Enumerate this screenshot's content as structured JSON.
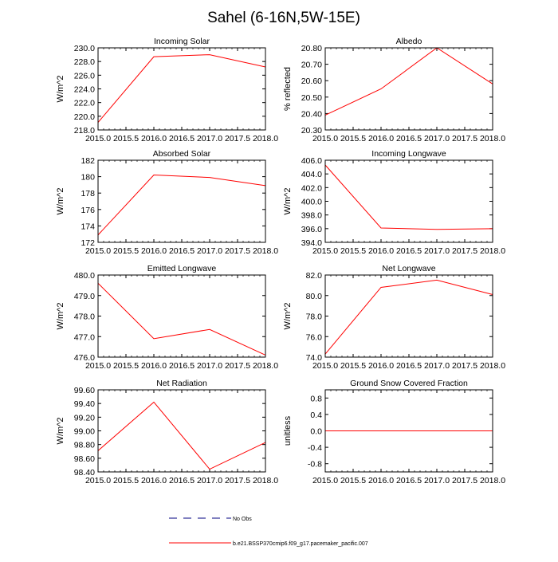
{
  "title": "Sahel (6-16N,5W-15E)",
  "colors": {
    "series": "#ff0000",
    "obs": "#000080",
    "axis": "#000000"
  },
  "legend": {
    "obs_label": "No Obs",
    "model_label": "b.e21.BSSP370cmip6.f09_g17.pacemaker_pacific.007"
  },
  "chart_data": [
    {
      "type": "line",
      "title": "Incoming Solar",
      "xlabel": "",
      "ylabel": "W/m^2",
      "x": [
        2015,
        2016,
        2017,
        2018
      ],
      "xlim": [
        2015,
        2018
      ],
      "xticks": [
        "2015.0",
        "2015.5",
        "2016.0",
        "2016.5",
        "2017.0",
        "2017.5",
        "2018.0"
      ],
      "ylim": [
        218,
        230
      ],
      "yticks": [
        "218.0",
        "220.0",
        "222.0",
        "224.0",
        "226.0",
        "228.0",
        "230.0"
      ],
      "series": [
        {
          "name": "b.e21.BSSP370cmip6.f09_g17.pacemaker_pacific.007",
          "values": [
            219.1,
            228.7,
            229.0,
            227.2
          ]
        }
      ]
    },
    {
      "type": "line",
      "title": "Albedo",
      "xlabel": "",
      "ylabel": "% reflected",
      "x": [
        2015,
        2016,
        2017,
        2018
      ],
      "xlim": [
        2015,
        2018
      ],
      "xticks": [
        "2015.0",
        "2015.5",
        "2016.0",
        "2016.5",
        "2017.0",
        "2017.5",
        "2018.0"
      ],
      "ylim": [
        20.3,
        20.8
      ],
      "yticks": [
        "20.30",
        "20.40",
        "20.50",
        "20.60",
        "20.70",
        "20.80"
      ],
      "series": [
        {
          "name": "b.e21.BSSP370cmip6.f09_g17.pacemaker_pacific.007",
          "values": [
            20.39,
            20.55,
            20.8,
            20.58
          ]
        }
      ]
    },
    {
      "type": "line",
      "title": "Absorbed Solar",
      "xlabel": "",
      "ylabel": "W/m^2",
      "x": [
        2015,
        2016,
        2017,
        2018
      ],
      "xlim": [
        2015,
        2018
      ],
      "xticks": [
        "2015.0",
        "2015.5",
        "2016.0",
        "2016.5",
        "2017.0",
        "2017.5",
        "2018.0"
      ],
      "ylim": [
        172,
        182
      ],
      "yticks": [
        "172",
        "174",
        "176",
        "178",
        "180",
        "182"
      ],
      "series": [
        {
          "name": "b.e21.BSSP370cmip6.f09_g17.pacemaker_pacific.007",
          "values": [
            172.9,
            180.2,
            179.9,
            178.9
          ]
        }
      ]
    },
    {
      "type": "line",
      "title": "Incoming Longwave",
      "xlabel": "",
      "ylabel": "W/m^2",
      "x": [
        2015,
        2016,
        2017,
        2018
      ],
      "xlim": [
        2015,
        2018
      ],
      "xticks": [
        "2015.0",
        "2015.5",
        "2016.0",
        "2016.5",
        "2017.0",
        "2017.5",
        "2018.0"
      ],
      "ylim": [
        394,
        406
      ],
      "yticks": [
        "394.0",
        "396.0",
        "398.0",
        "400.0",
        "402.0",
        "404.0",
        "406.0"
      ],
      "series": [
        {
          "name": "b.e21.BSSP370cmip6.f09_g17.pacemaker_pacific.007",
          "values": [
            405.3,
            396.1,
            395.9,
            396.0
          ]
        }
      ]
    },
    {
      "type": "line",
      "title": "Emitted Longwave",
      "xlabel": "",
      "ylabel": "W/m^2",
      "x": [
        2015,
        2016,
        2017,
        2018
      ],
      "xlim": [
        2015,
        2018
      ],
      "xticks": [
        "2015.0",
        "2015.5",
        "2016.0",
        "2016.5",
        "2017.0",
        "2017.5",
        "2018.0"
      ],
      "ylim": [
        476,
        480
      ],
      "yticks": [
        "476.0",
        "477.0",
        "478.0",
        "479.0",
        "480.0"
      ],
      "series": [
        {
          "name": "b.e21.BSSP370cmip6.f09_g17.pacemaker_pacific.007",
          "values": [
            479.6,
            476.9,
            477.35,
            476.1
          ]
        }
      ]
    },
    {
      "type": "line",
      "title": "Net Longwave",
      "xlabel": "",
      "ylabel": "W/m^2",
      "x": [
        2015,
        2016,
        2017,
        2018
      ],
      "xlim": [
        2015,
        2018
      ],
      "xticks": [
        "2015.0",
        "2015.5",
        "2016.0",
        "2016.5",
        "2017.0",
        "2017.5",
        "2018.0"
      ],
      "ylim": [
        74,
        82
      ],
      "yticks": [
        "74.0",
        "76.0",
        "78.0",
        "80.0",
        "82.0"
      ],
      "series": [
        {
          "name": "b.e21.BSSP370cmip6.f09_g17.pacemaker_pacific.007",
          "values": [
            74.3,
            80.8,
            81.5,
            80.1
          ]
        }
      ]
    },
    {
      "type": "line",
      "title": "Net Radiation",
      "xlabel": "",
      "ylabel": "W/m^2",
      "x": [
        2015,
        2016,
        2017,
        2018
      ],
      "xlim": [
        2015,
        2018
      ],
      "xticks": [
        "2015.0",
        "2015.5",
        "2016.0",
        "2016.5",
        "2017.0",
        "2017.5",
        "2018.0"
      ],
      "ylim": [
        98.4,
        99.6
      ],
      "yticks": [
        "98.40",
        "98.60",
        "98.80",
        "99.00",
        "99.20",
        "99.40",
        "99.60"
      ],
      "series": [
        {
          "name": "b.e21.BSSP370cmip6.f09_g17.pacemaker_pacific.007",
          "values": [
            98.71,
            99.42,
            98.44,
            98.83
          ]
        }
      ]
    },
    {
      "type": "line",
      "title": "Ground Snow Covered Fraction",
      "xlabel": "",
      "ylabel": "unitless",
      "x": [
        2015,
        2016,
        2017,
        2018
      ],
      "xlim": [
        2015,
        2018
      ],
      "xticks": [
        "2015.0",
        "2015.5",
        "2016.0",
        "2016.5",
        "2017.0",
        "2017.5",
        "2018.0"
      ],
      "ylim": [
        -1.0,
        1.0
      ],
      "yticks": [
        "-0.8",
        "-0.4",
        "0.0",
        "0.4",
        "0.8"
      ],
      "ytick_values": [
        -0.8,
        -0.4,
        0.0,
        0.4,
        0.8
      ],
      "series": [
        {
          "name": "b.e21.BSSP370cmip6.f09_g17.pacemaker_pacific.007",
          "values": [
            0.0,
            0.0,
            0.0,
            0.0
          ]
        }
      ]
    }
  ]
}
